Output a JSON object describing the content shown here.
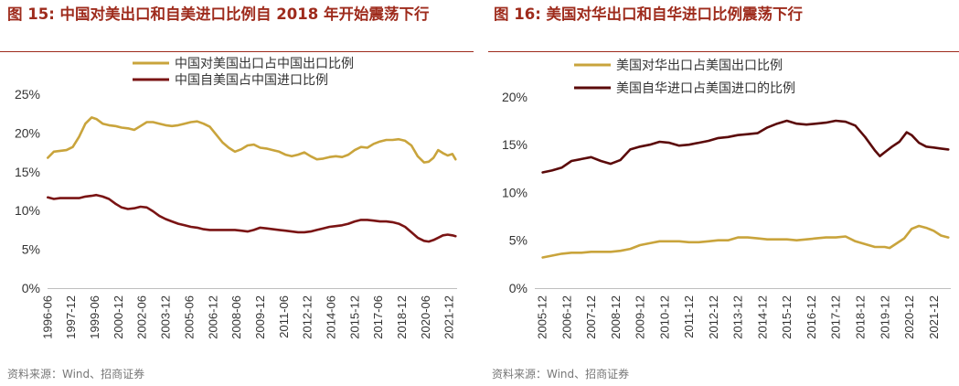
{
  "figures": [
    {
      "title": "图 15:  中国对美出口和自美进口比例自 2018 年开始震荡下行",
      "source": "资料来源：Wind、招商证券"
    },
    {
      "title": "图 16:  美国对华出口和自华进口比例震荡下行",
      "source": "资料来源：Wind、招商证券"
    }
  ],
  "chart_data": [
    {
      "type": "line",
      "title": "图 15:  中国对美出口和自美进口比例自 2018 年开始震荡下行",
      "ylim": [
        0,
        25
      ],
      "yticks": [
        "0%",
        "5%",
        "10%",
        "15%",
        "20%",
        "25%"
      ],
      "ytick_values": [
        0,
        5,
        10,
        15,
        20,
        25
      ],
      "xlim": [
        1996.4,
        2022.4
      ],
      "x_tick_labels": [
        "1996-06",
        "1997-12",
        "1999-06",
        "2000-12",
        "2002-06",
        "2003-12",
        "2005-06",
        "2006-12",
        "2008-06",
        "2009-12",
        "2011-06",
        "2012-12",
        "2014-06",
        "2015-12",
        "2017-06",
        "2018-12",
        "2020-06",
        "2021-12"
      ],
      "x_tick_positions": [
        1996.42,
        1997.92,
        1999.42,
        2000.92,
        2002.42,
        2003.92,
        2005.42,
        2006.92,
        2008.42,
        2009.92,
        2011.42,
        2012.92,
        2014.42,
        2015.92,
        2017.42,
        2018.92,
        2020.42,
        2021.92
      ],
      "legend_position": "top",
      "series": [
        {
          "name": "中国对美国出口占中国出口比例",
          "color": "#c9a43c",
          "x": [
            1996.42,
            1996.8,
            1997.2,
            1997.6,
            1998.0,
            1998.4,
            1998.8,
            1999.2,
            1999.5,
            1999.9,
            2000.3,
            2000.7,
            2001.1,
            2001.5,
            2001.9,
            2002.3,
            2002.7,
            2003.1,
            2003.5,
            2003.9,
            2004.3,
            2004.7,
            2005.1,
            2005.5,
            2005.9,
            2006.3,
            2006.7,
            2007.1,
            2007.5,
            2007.9,
            2008.3,
            2008.7,
            2009.1,
            2009.5,
            2009.9,
            2010.3,
            2010.7,
            2011.1,
            2011.5,
            2011.9,
            2012.3,
            2012.7,
            2013.1,
            2013.5,
            2013.9,
            2014.3,
            2014.7,
            2015.1,
            2015.5,
            2015.9,
            2016.3,
            2016.7,
            2017.1,
            2017.5,
            2017.9,
            2018.3,
            2018.7,
            2019.1,
            2019.5,
            2019.9,
            2020.3,
            2020.6,
            2020.9,
            2021.2,
            2021.5,
            2021.8,
            2022.1,
            2022.3
          ],
          "values": [
            16.8,
            17.6,
            17.7,
            17.8,
            18.2,
            19.5,
            21.2,
            22.0,
            21.8,
            21.2,
            21.0,
            20.9,
            20.7,
            20.6,
            20.4,
            20.9,
            21.4,
            21.4,
            21.2,
            21.0,
            20.9,
            21.0,
            21.2,
            21.4,
            21.5,
            21.2,
            20.8,
            19.8,
            18.8,
            18.1,
            17.6,
            17.9,
            18.4,
            18.5,
            18.1,
            18.0,
            17.8,
            17.6,
            17.2,
            17.0,
            17.2,
            17.5,
            17.0,
            16.6,
            16.7,
            16.9,
            17.0,
            16.9,
            17.2,
            17.8,
            18.2,
            18.1,
            18.6,
            18.9,
            19.1,
            19.1,
            19.2,
            19.0,
            18.4,
            17.0,
            16.2,
            16.3,
            16.8,
            17.8,
            17.4,
            17.1,
            17.3,
            16.6
          ]
        },
        {
          "name": "中国自美国占中国进口比例",
          "color": "#7a1414",
          "x": [
            1996.42,
            1996.8,
            1997.2,
            1997.6,
            1998.0,
            1998.4,
            1998.8,
            1999.2,
            1999.5,
            1999.9,
            2000.3,
            2000.7,
            2001.1,
            2001.5,
            2001.9,
            2002.3,
            2002.7,
            2003.1,
            2003.5,
            2003.9,
            2004.3,
            2004.7,
            2005.1,
            2005.5,
            2005.9,
            2006.3,
            2006.7,
            2007.1,
            2007.5,
            2007.9,
            2008.3,
            2008.7,
            2009.1,
            2009.5,
            2009.9,
            2010.3,
            2010.7,
            2011.1,
            2011.5,
            2011.9,
            2012.3,
            2012.7,
            2013.1,
            2013.5,
            2013.9,
            2014.3,
            2014.7,
            2015.1,
            2015.5,
            2015.9,
            2016.3,
            2016.7,
            2017.1,
            2017.5,
            2017.9,
            2018.3,
            2018.7,
            2019.1,
            2019.5,
            2019.9,
            2020.3,
            2020.6,
            2020.9,
            2021.2,
            2021.5,
            2021.8,
            2022.1,
            2022.3
          ],
          "values": [
            11.7,
            11.5,
            11.6,
            11.6,
            11.6,
            11.6,
            11.8,
            11.9,
            12.0,
            11.8,
            11.5,
            10.9,
            10.4,
            10.2,
            10.3,
            10.5,
            10.4,
            9.9,
            9.3,
            8.9,
            8.6,
            8.3,
            8.1,
            7.9,
            7.8,
            7.6,
            7.5,
            7.5,
            7.5,
            7.5,
            7.5,
            7.4,
            7.3,
            7.5,
            7.8,
            7.7,
            7.6,
            7.5,
            7.4,
            7.3,
            7.2,
            7.2,
            7.3,
            7.5,
            7.7,
            7.9,
            8.0,
            8.1,
            8.3,
            8.6,
            8.8,
            8.8,
            8.7,
            8.6,
            8.6,
            8.5,
            8.3,
            7.9,
            7.2,
            6.5,
            6.1,
            6.0,
            6.2,
            6.5,
            6.8,
            6.9,
            6.8,
            6.7
          ]
        }
      ]
    },
    {
      "type": "line",
      "title": "图 16:  美国对华出口和自华进口比例震荡下行",
      "ylim": [
        0,
        22
      ],
      "yticks": [
        "0%",
        "5%",
        "10%",
        "15%",
        "20%"
      ],
      "ytick_values": [
        0,
        5,
        10,
        15,
        20
      ],
      "xlim": [
        2005.6,
        2022.6
      ],
      "x_tick_labels": [
        "2005-12",
        "2006-12",
        "2007-12",
        "2008-12",
        "2009-12",
        "2010-12",
        "2011-12",
        "2012-12",
        "2013-12",
        "2014-12",
        "2015-12",
        "2016-12",
        "2017-12",
        "2018-12",
        "2019-12",
        "2020-12",
        "2021-12"
      ],
      "x_tick_positions": [
        2005.92,
        2006.92,
        2007.92,
        2008.92,
        2009.92,
        2010.92,
        2011.92,
        2012.92,
        2013.92,
        2014.92,
        2015.92,
        2016.92,
        2017.92,
        2018.92,
        2019.92,
        2020.92,
        2021.92
      ],
      "legend_position": "top",
      "series": [
        {
          "name": "美国对华出口占美国出口比例",
          "color": "#c9a43c",
          "x": [
            2005.92,
            2006.3,
            2006.7,
            2007.1,
            2007.5,
            2007.9,
            2008.3,
            2008.7,
            2009.1,
            2009.5,
            2009.9,
            2010.3,
            2010.7,
            2011.1,
            2011.5,
            2011.9,
            2012.3,
            2012.7,
            2013.1,
            2013.5,
            2013.9,
            2014.3,
            2014.7,
            2015.1,
            2015.5,
            2015.9,
            2016.3,
            2016.7,
            2017.1,
            2017.5,
            2017.9,
            2018.3,
            2018.7,
            2019.1,
            2019.5,
            2019.9,
            2020.1,
            2020.4,
            2020.7,
            2021.0,
            2021.3,
            2021.6,
            2021.9,
            2022.2,
            2022.5
          ],
          "values": [
            3.2,
            3.4,
            3.6,
            3.7,
            3.7,
            3.8,
            3.8,
            3.8,
            3.9,
            4.1,
            4.5,
            4.7,
            4.9,
            4.9,
            4.9,
            4.8,
            4.8,
            4.9,
            5.0,
            5.0,
            5.3,
            5.3,
            5.2,
            5.1,
            5.1,
            5.1,
            5.0,
            5.1,
            5.2,
            5.3,
            5.3,
            5.4,
            4.9,
            4.6,
            4.3,
            4.3,
            4.2,
            4.7,
            5.2,
            6.2,
            6.5,
            6.3,
            6.0,
            5.5,
            5.3
          ]
        },
        {
          "name": "美国自华进口占美国进口的比例",
          "color": "#5b0a0a",
          "x": [
            2005.92,
            2006.3,
            2006.7,
            2007.1,
            2007.5,
            2007.9,
            2008.3,
            2008.7,
            2009.1,
            2009.5,
            2009.9,
            2010.3,
            2010.7,
            2011.1,
            2011.5,
            2011.9,
            2012.3,
            2012.7,
            2013.1,
            2013.5,
            2013.9,
            2014.3,
            2014.7,
            2015.1,
            2015.5,
            2015.9,
            2016.3,
            2016.7,
            2017.1,
            2017.5,
            2017.9,
            2018.3,
            2018.7,
            2019.1,
            2019.5,
            2019.7,
            2019.9,
            2020.2,
            2020.5,
            2020.8,
            2021.0,
            2021.3,
            2021.6,
            2021.9,
            2022.2,
            2022.5
          ],
          "values": [
            12.1,
            12.3,
            12.6,
            13.3,
            13.5,
            13.7,
            13.3,
            13.0,
            13.4,
            14.5,
            14.8,
            15.0,
            15.3,
            15.2,
            14.9,
            15.0,
            15.2,
            15.4,
            15.7,
            15.8,
            16.0,
            16.1,
            16.2,
            16.8,
            17.2,
            17.5,
            17.2,
            17.1,
            17.2,
            17.3,
            17.5,
            17.4,
            17.0,
            15.8,
            14.4,
            13.8,
            14.2,
            14.8,
            15.3,
            16.3,
            16.0,
            15.2,
            14.8,
            14.7,
            14.6,
            14.5
          ]
        }
      ]
    }
  ]
}
